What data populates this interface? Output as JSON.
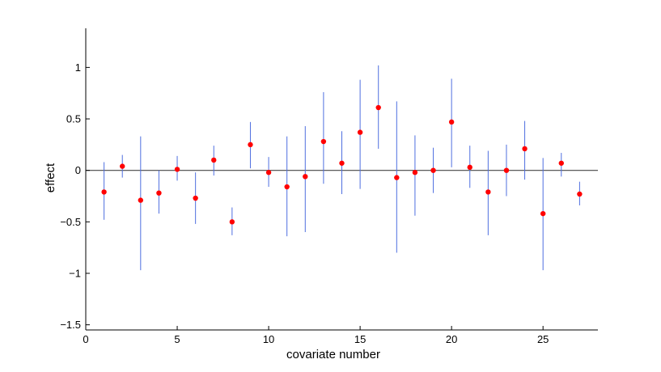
{
  "chart_data": {
    "type": "scatter",
    "title": "",
    "xlabel": "covariate number",
    "ylabel": "effect",
    "xlim": [
      0,
      28
    ],
    "ylim": [
      -1.55,
      1.38
    ],
    "grid": false,
    "x_ticks": [
      0,
      5,
      10,
      15,
      20,
      25
    ],
    "x_tick_labels": [
      "0",
      "5",
      "10",
      "15",
      "20",
      "25"
    ],
    "y_ticks": [
      -1.5,
      -1,
      -0.5,
      0,
      0.5,
      1
    ],
    "y_tick_labels": [
      "−1.5",
      "−1",
      "−0.5",
      "0",
      "0.5",
      "1"
    ],
    "reference_line_y": 0,
    "colors": {
      "point": "#ff0000",
      "interval": "#4f6fe0",
      "axis": "#000000",
      "reference": "#444444"
    },
    "x": [
      1,
      2,
      3,
      4,
      5,
      6,
      7,
      8,
      9,
      10,
      11,
      12,
      13,
      14,
      15,
      16,
      17,
      18,
      19,
      20,
      21,
      22,
      23,
      24,
      25,
      26,
      27
    ],
    "estimate": [
      -0.21,
      0.04,
      -0.29,
      -0.22,
      0.01,
      -0.27,
      0.1,
      -0.5,
      0.25,
      -0.02,
      -0.16,
      -0.06,
      0.28,
      0.07,
      0.37,
      0.61,
      -0.07,
      -0.02,
      0.0,
      0.47,
      0.03,
      -0.21,
      0.0,
      0.21,
      -0.42,
      0.07,
      -0.23
    ],
    "lower": [
      -0.48,
      -0.07,
      -0.97,
      -0.42,
      -0.1,
      -0.52,
      -0.05,
      -0.63,
      0.02,
      -0.16,
      -0.64,
      -0.6,
      -0.13,
      -0.23,
      -0.18,
      0.21,
      -0.8,
      -0.44,
      -0.22,
      0.03,
      -0.17,
      -0.63,
      -0.25,
      -0.09,
      -0.97,
      -0.06,
      -0.34
    ],
    "upper": [
      0.08,
      0.15,
      0.33,
      0.0,
      0.14,
      -0.02,
      0.24,
      -0.36,
      0.47,
      0.13,
      0.33,
      0.43,
      0.76,
      0.38,
      0.88,
      1.02,
      0.67,
      0.34,
      0.22,
      0.89,
      0.24,
      0.19,
      0.25,
      0.48,
      0.12,
      0.17,
      -0.11
    ]
  }
}
